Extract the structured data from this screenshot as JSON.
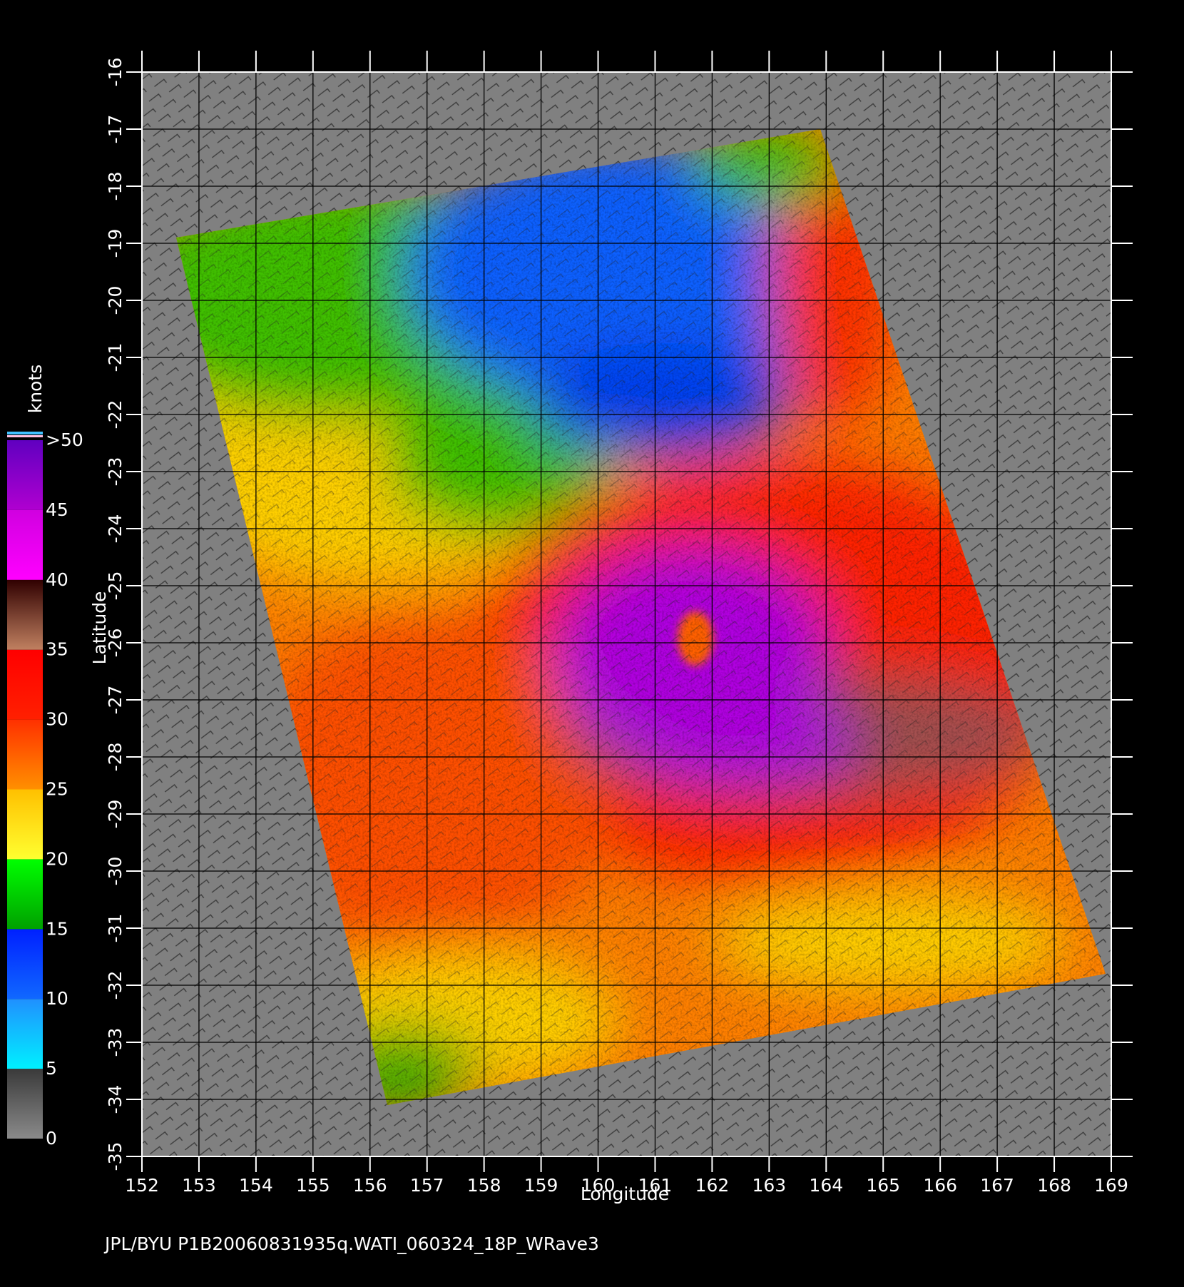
{
  "map": {
    "xlabel": "Longitude",
    "ylabel": "Latitude",
    "xlim": [
      152,
      169
    ],
    "ylim": [
      -35,
      -16
    ],
    "xticks": [
      152,
      153,
      154,
      155,
      156,
      157,
      158,
      159,
      160,
      161,
      162,
      163,
      164,
      165,
      166,
      167,
      168,
      169
    ],
    "yticks": [
      -16,
      -17,
      -18,
      -19,
      -20,
      -21,
      -22,
      -23,
      -24,
      -25,
      -26,
      -27,
      -28,
      -29,
      -30,
      -31,
      -32,
      -33,
      -34,
      -35
    ]
  },
  "colorbar": {
    "title": "knots",
    "ticks": [
      0,
      5,
      10,
      15,
      20,
      25,
      30,
      35,
      40,
      45,
      {
        "value": 50,
        "label": ">50"
      }
    ],
    "colors": [
      [
        "#8a8a8a",
        "#3a3a3a"
      ],
      [
        "#00f0ff",
        "#2090ff"
      ],
      [
        "#1068ff",
        "#0020ff"
      ],
      [
        "#00a000",
        "#00ff00"
      ],
      [
        "#ffff30",
        "#ffc000"
      ],
      [
        "#ff9000",
        "#ff3000"
      ],
      [
        "#ff2000",
        "#ff0000"
      ],
      [
        "#c08060",
        "#300000"
      ],
      [
        "#ff00ff",
        "#d000e0"
      ],
      [
        "#b000d0",
        "#6000c0"
      ]
    ]
  },
  "footer": "JPL/BYU  P1B20060831935q.WATI_060324_18P_WRave3"
}
